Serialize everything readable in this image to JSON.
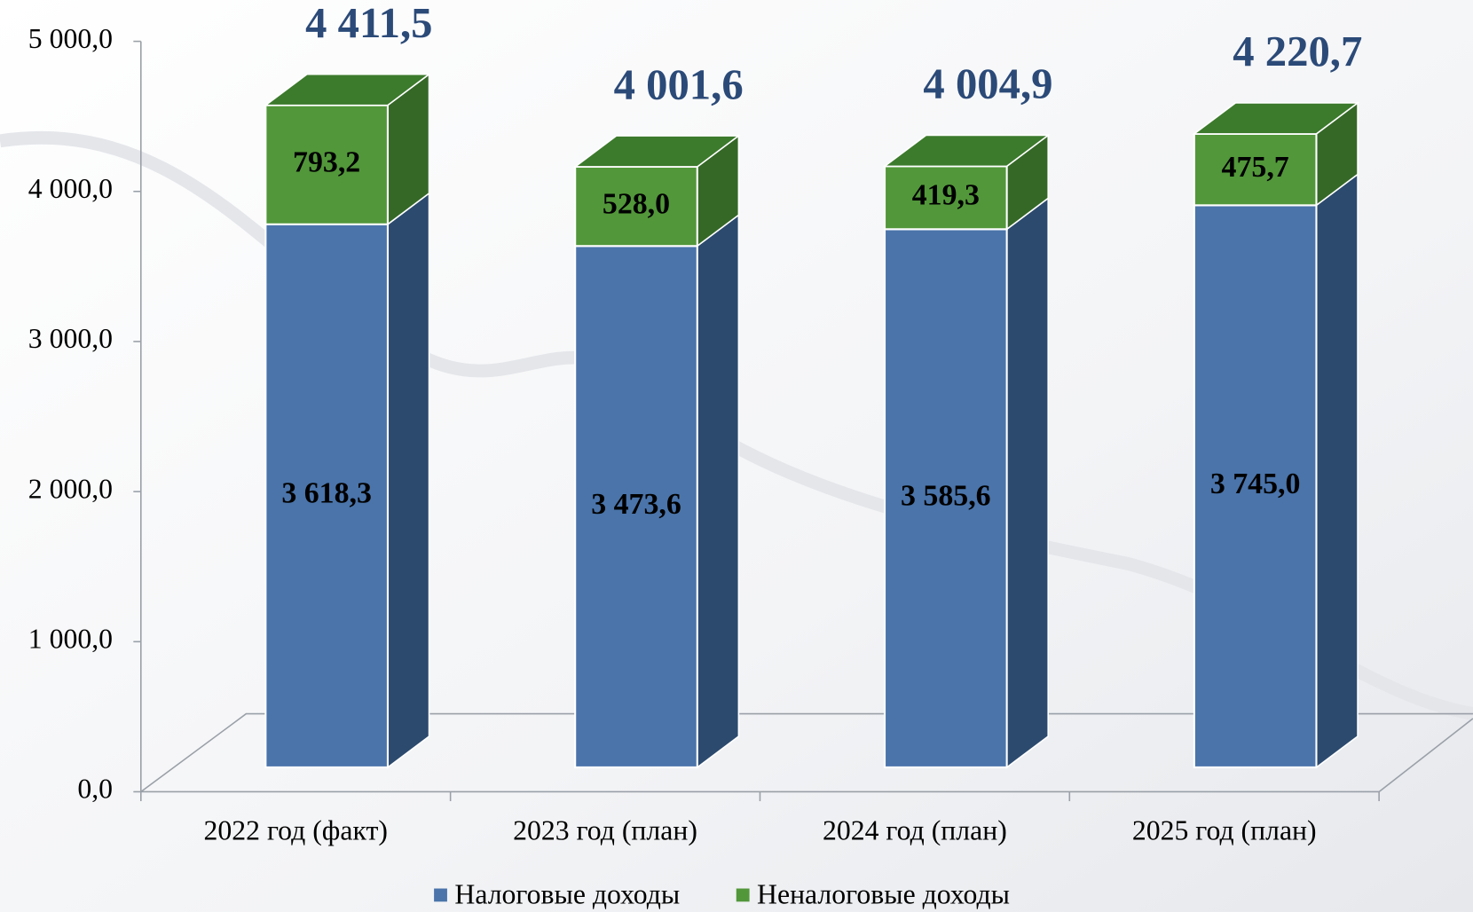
{
  "chart_data": {
    "type": "bar3d_stacked",
    "categories": [
      "2022 год (факт)",
      "2023 год (план)",
      "2024 год (план)",
      "2025 год (план)"
    ],
    "series": [
      {
        "name": "Налоговые доходы",
        "color": "#4a74aa",
        "side_color": "#2c4a6e",
        "top_color": "#3a5f8e",
        "values": [
          3618.3,
          3473.6,
          3585.6,
          3745.0
        ],
        "value_labels": [
          "3 618,3",
          "3 473,6",
          "3 585,6",
          "3 745,0"
        ]
      },
      {
        "name": "Неналоговые доходы",
        "color": "#52973a",
        "side_color": "#356827",
        "top_color": "#3c7a2c",
        "values": [
          793.2,
          528.0,
          419.3,
          475.7
        ],
        "value_labels": [
          "793,2",
          "528,0",
          "419,3",
          "475,7"
        ]
      }
    ],
    "totals": [
      4411.5,
      4001.6,
      4004.9,
      4220.7
    ],
    "total_labels": [
      "4 411,5",
      "4 001,6",
      "4 004,9",
      "4 220,7"
    ],
    "ylim": [
      0,
      5000
    ],
    "yticks": [
      {
        "value": 0,
        "label": "0,0"
      },
      {
        "value": 1000,
        "label": "1 000,0"
      },
      {
        "value": 2000,
        "label": "2 000,0"
      },
      {
        "value": 3000,
        "label": "3 000,0"
      },
      {
        "value": 4000,
        "label": "4 000,0"
      },
      {
        "value": 5000,
        "label": "5 000,0"
      }
    ],
    "legend": "bottom"
  }
}
